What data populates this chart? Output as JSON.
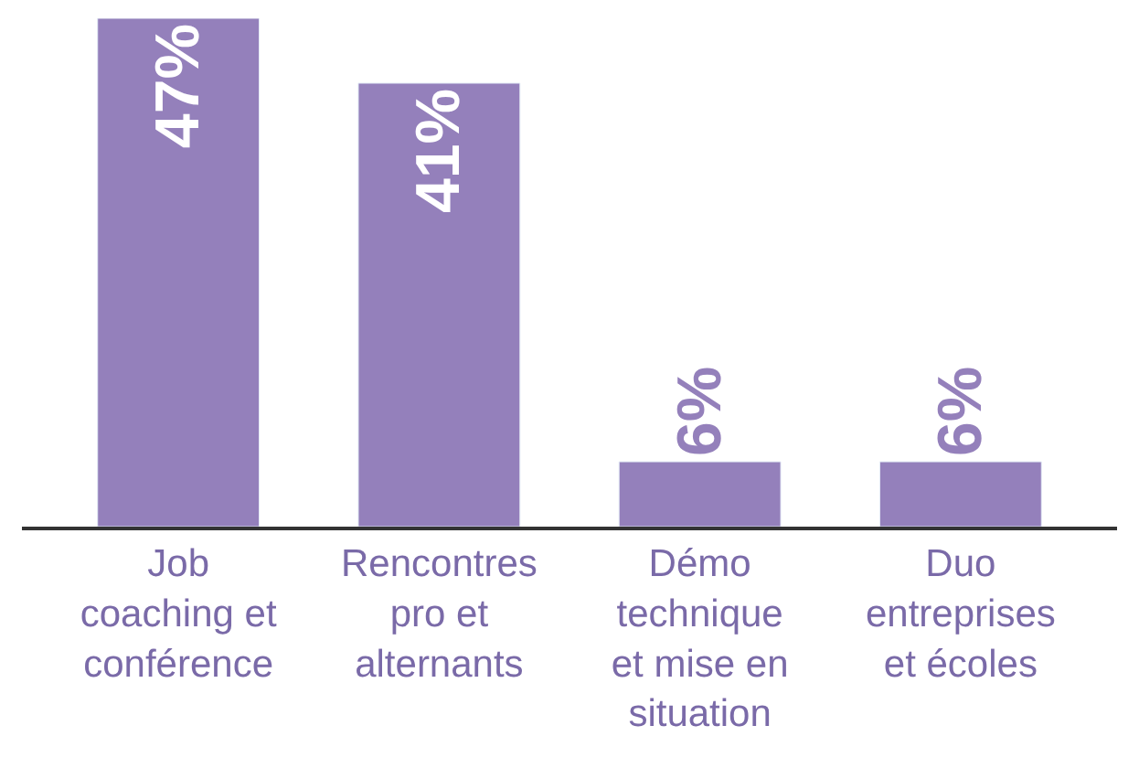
{
  "chart_data": {
    "type": "bar",
    "categories": [
      "Job\ncoaching et\nconférence",
      "Rencontres\npro et\nalternants",
      "Démo\ntechnique\net mise en\nsituation",
      "Duo\nentreprises\net écoles"
    ],
    "values": [
      47,
      41,
      6,
      6
    ],
    "color": "#9480bb",
    "data_labels": true,
    "value_labels": [
      "47%",
      "41%",
      "6%",
      "6%"
    ]
  }
}
